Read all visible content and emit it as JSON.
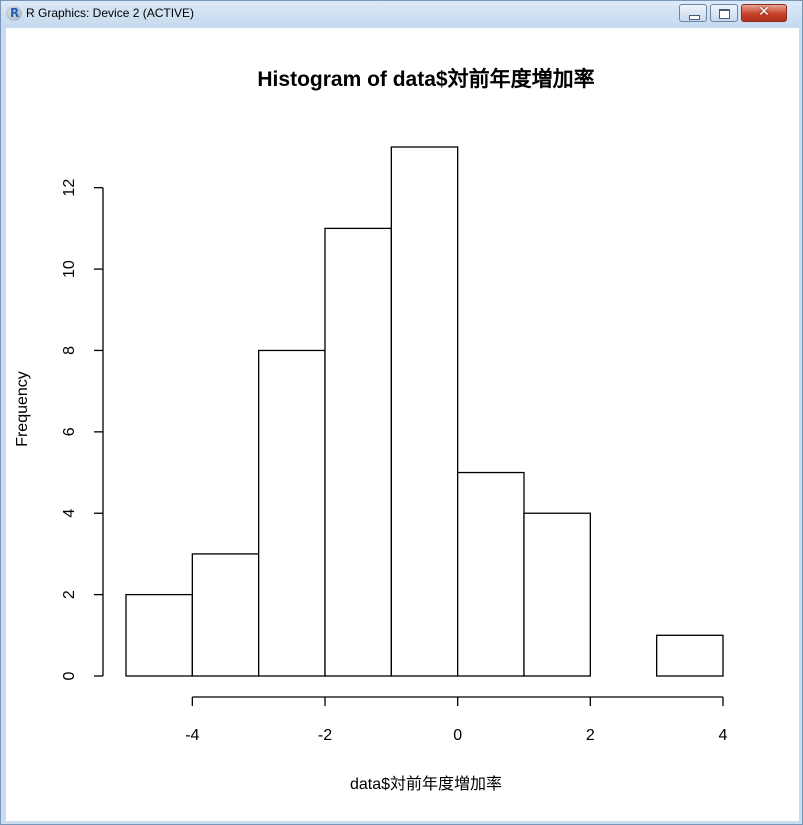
{
  "window": {
    "title": "R Graphics: Device 2 (ACTIVE)",
    "icon": "r-logo-icon",
    "controls": {
      "minimize": "minimize-icon",
      "maximize": "maximize-icon",
      "close": "close-icon",
      "close_glyph": "✕"
    },
    "colors": {
      "titlebar": "#c5d9ee",
      "close_button": "#c6402a",
      "frame": "#7a96b8"
    }
  },
  "chart_data": {
    "type": "bar",
    "title": "Histogram of data$対前年度増加率",
    "xlabel": "data$対前年度増加率",
    "ylabel": "Frequency",
    "bins": [
      {
        "start": -5,
        "end": -4,
        "count": 2
      },
      {
        "start": -4,
        "end": -3,
        "count": 3
      },
      {
        "start": -3,
        "end": -2,
        "count": 8
      },
      {
        "start": -2,
        "end": -1,
        "count": 11
      },
      {
        "start": -1,
        "end": 0,
        "count": 13
      },
      {
        "start": 0,
        "end": 1,
        "count": 5
      },
      {
        "start": 1,
        "end": 2,
        "count": 4
      },
      {
        "start": 2,
        "end": 3,
        "count": 0
      },
      {
        "start": 3,
        "end": 4,
        "count": 1
      }
    ],
    "x_ticks": [
      -4,
      -2,
      0,
      2,
      4
    ],
    "x_tick_labels": [
      "-4",
      "-2",
      "0",
      "2",
      "4"
    ],
    "y_ticks": [
      0,
      2,
      4,
      6,
      8,
      10,
      12
    ],
    "y_tick_labels": [
      "0",
      "2",
      "4",
      "6",
      "8",
      "10",
      "12"
    ],
    "xlim": [
      -5,
      4
    ],
    "ylim": [
      0,
      13
    ],
    "grid": false,
    "legend": "none",
    "colors": {
      "bar_fill": "#ffffff",
      "bar_stroke": "#000000"
    }
  }
}
